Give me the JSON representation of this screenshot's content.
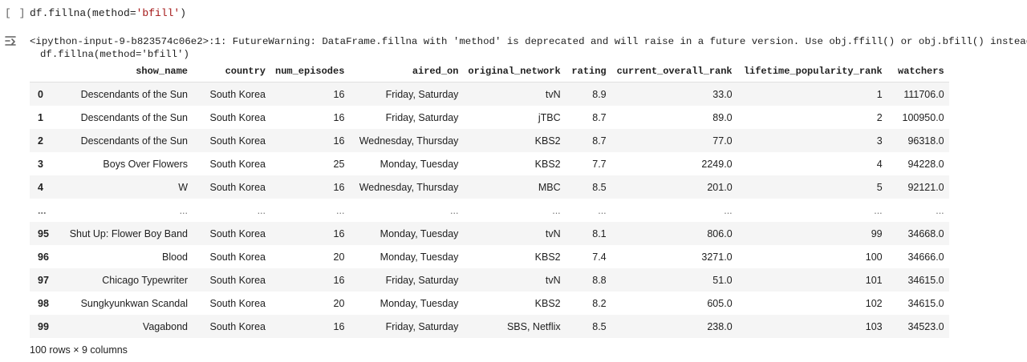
{
  "cell": {
    "prompt": "[ ]",
    "code_prefix": "df.fillna(method=",
    "code_string": "'bfill'",
    "code_suffix": ")"
  },
  "output": {
    "icon": "output-toggle-icon",
    "warning_line1": "<ipython-input-9-b823574c06e2>:1: FutureWarning: DataFrame.fillna with 'method' is deprecated and will raise in a future version. Use obj.ffill() or obj.bfill() instead.",
    "warning_line2": "df.fillna(method='bfill')"
  },
  "table": {
    "columns": [
      "",
      "show_name",
      "country",
      "num_episodes",
      "aired_on",
      "original_network",
      "rating",
      "current_overall_rank",
      "lifetime_popularity_rank",
      "watchers"
    ],
    "rows": [
      [
        "0",
        "Descendants of the Sun",
        "South Korea",
        "16",
        "Friday, Saturday",
        "tvN",
        "8.9",
        "33.0",
        "1",
        "111706.0"
      ],
      [
        "1",
        "Descendants of the Sun",
        "South Korea",
        "16",
        "Friday, Saturday",
        "jTBC",
        "8.7",
        "89.0",
        "2",
        "100950.0"
      ],
      [
        "2",
        "Descendants of the Sun",
        "South Korea",
        "16",
        "Wednesday, Thursday",
        "KBS2",
        "8.7",
        "77.0",
        "3",
        "96318.0"
      ],
      [
        "3",
        "Boys Over Flowers",
        "South Korea",
        "25",
        "Monday, Tuesday",
        "KBS2",
        "7.7",
        "2249.0",
        "4",
        "94228.0"
      ],
      [
        "4",
        "W",
        "South Korea",
        "16",
        "Wednesday, Thursday",
        "MBC",
        "8.5",
        "201.0",
        "5",
        "92121.0"
      ],
      [
        "...",
        "...",
        "...",
        "...",
        "...",
        "...",
        "...",
        "...",
        "...",
        "..."
      ],
      [
        "95",
        "Shut Up: Flower Boy Band",
        "South Korea",
        "16",
        "Monday, Tuesday",
        "tvN",
        "8.1",
        "806.0",
        "99",
        "34668.0"
      ],
      [
        "96",
        "Blood",
        "South Korea",
        "20",
        "Monday, Tuesday",
        "KBS2",
        "7.4",
        "3271.0",
        "100",
        "34666.0"
      ],
      [
        "97",
        "Chicago Typewriter",
        "South Korea",
        "16",
        "Friday, Saturday",
        "tvN",
        "8.8",
        "51.0",
        "101",
        "34615.0"
      ],
      [
        "98",
        "Sungkyunkwan Scandal",
        "South Korea",
        "20",
        "Monday, Tuesday",
        "KBS2",
        "8.2",
        "605.0",
        "102",
        "34615.0"
      ],
      [
        "99",
        "Vagabond",
        "South Korea",
        "16",
        "Friday, Saturday",
        "SBS, Netflix",
        "8.5",
        "238.0",
        "103",
        "34523.0"
      ]
    ],
    "shape": "100 rows × 9 columns"
  }
}
